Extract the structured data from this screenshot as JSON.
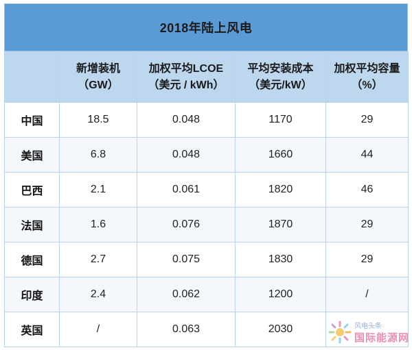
{
  "table": {
    "title": "2018年陆上风电",
    "headers": [
      {
        "line1": "",
        "line2": ""
      },
      {
        "line1": "新增装机",
        "line2": "（GW）"
      },
      {
        "line1": "加权平均LCOE",
        "line2": "（美元 / kWh）"
      },
      {
        "line1": "平均安装成本",
        "line2": "（美元/kW）"
      },
      {
        "line1": "加权平均容量",
        "line2": "（%）"
      }
    ],
    "rows": [
      {
        "country": "中国",
        "capacity": "18.5",
        "lcoe": "0.048",
        "cost": "1170",
        "factor": "29"
      },
      {
        "country": "美国",
        "capacity": "6.8",
        "lcoe": "0.048",
        "cost": "1660",
        "factor": "44"
      },
      {
        "country": "巴西",
        "capacity": "2.1",
        "lcoe": "0.061",
        "cost": "1820",
        "factor": "46"
      },
      {
        "country": "法国",
        "capacity": "1.6",
        "lcoe": "0.076",
        "cost": "1870",
        "factor": "29"
      },
      {
        "country": "德国",
        "capacity": "2.7",
        "lcoe": "0.075",
        "cost": "1830",
        "factor": "29"
      },
      {
        "country": "印度",
        "capacity": "2.4",
        "lcoe": "0.062",
        "cost": "1200",
        "factor": "/"
      },
      {
        "country": "英国",
        "capacity": "/",
        "lcoe": "0.063",
        "cost": "2030",
        "factor": ""
      }
    ]
  },
  "watermark": {
    "top_text": "风电头条",
    "main_text": "国际能源网",
    "colors": {
      "main": "#e87aa8",
      "top": "#7aa0c8"
    }
  }
}
